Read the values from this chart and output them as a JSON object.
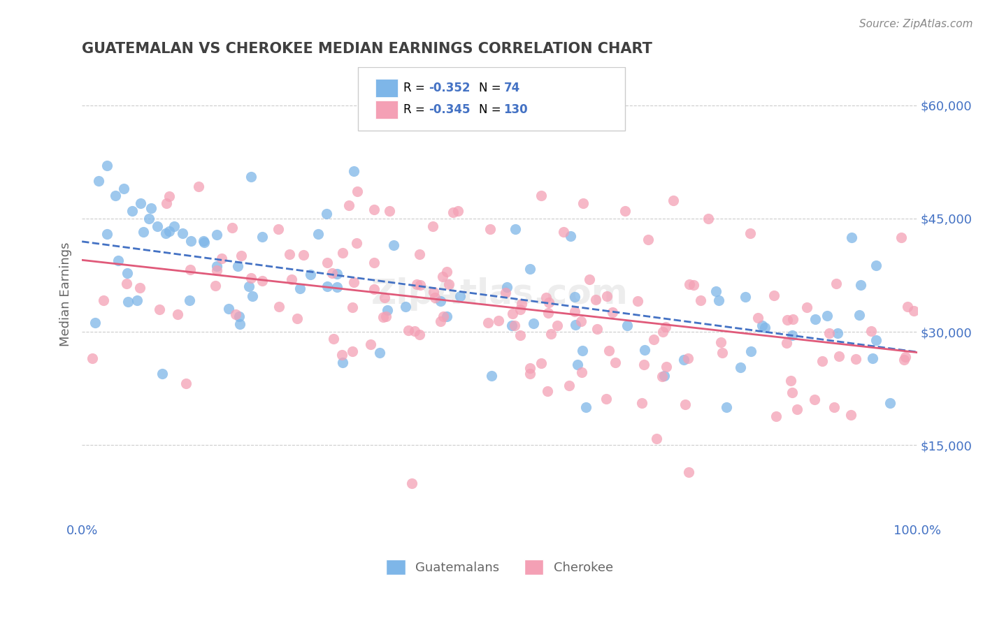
{
  "title": "GUATEMALAN VS CHEROKEE MEDIAN EARNINGS CORRELATION CHART",
  "source_text": "Source: ZipAtlas.com",
  "ylabel": "Median Earnings",
  "xlim": [
    0.0,
    1.0
  ],
  "ylim": [
    5000,
    65000
  ],
  "yticks": [
    15000,
    30000,
    45000,
    60000
  ],
  "ytick_labels": [
    "$15,000",
    "$30,000",
    "$45,000",
    "$60,000"
  ],
  "r_guatemalan": -0.352,
  "n_guatemalan": 74,
  "r_cherokee": -0.345,
  "n_cherokee": 130,
  "color_guatemalan": "#7EB6E8",
  "color_cherokee": "#F4A0B5",
  "color_blue_text": "#4472C4",
  "color_pink_line": "#E05A7A",
  "color_blue_line": "#4472C4",
  "background_color": "#FFFFFF",
  "grid_color": "#CCCCCC",
  "title_color": "#404040"
}
